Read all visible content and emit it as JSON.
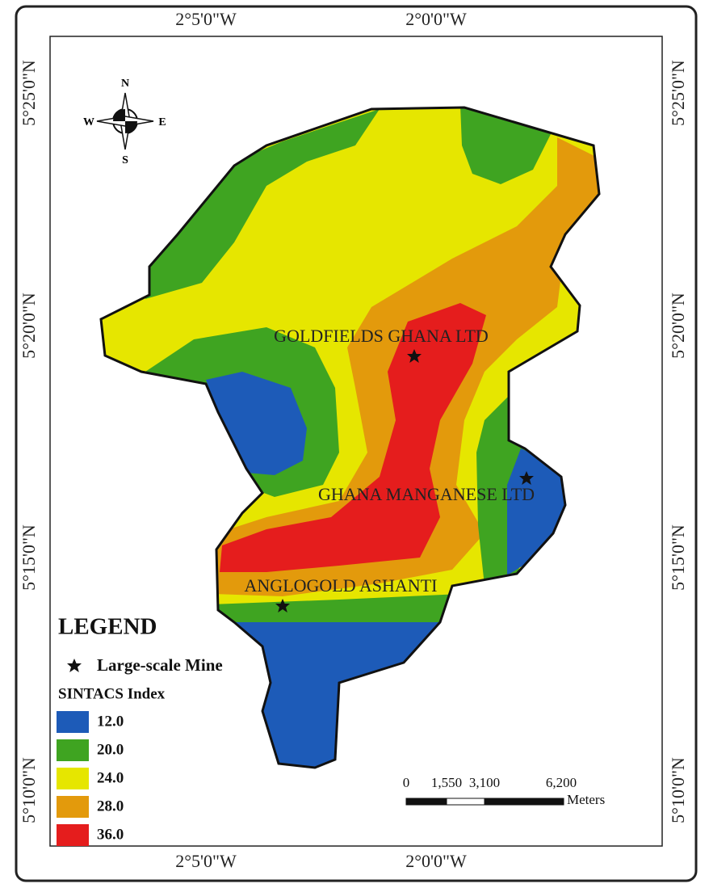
{
  "map": {
    "top_labels": [
      "2°5'0\"W",
      "2°0'0\"W"
    ],
    "bottom_labels": [
      "2°5'0\"W",
      "2°0'0\"W"
    ],
    "left_labels": [
      "5°25'0\"N",
      "5°20'0\"N",
      "5°15'0\"N",
      "5°10'0\"N"
    ],
    "right_labels": [
      "5°25'0\"N",
      "5°20'0\"N",
      "5°15'0\"N",
      "5°10'0\"N"
    ],
    "compass": {
      "n": "N",
      "s": "S",
      "e": "E",
      "w": "W"
    },
    "mines": [
      "GOLDFIELDS GHANA LTD",
      "GHANA MANGANESE LTD",
      "ANGLOGOLD ASHANTI"
    ],
    "scale_bar": {
      "labels": [
        "0",
        "1,550",
        "3,100",
        "6,200"
      ],
      "unit": "Meters"
    }
  },
  "legend": {
    "title": "LEGEND",
    "mine_label": "Large-scale Mine",
    "index_title": "SINTACS Index",
    "classes": [
      {
        "label": "12.0",
        "color": "#1d5bb8"
      },
      {
        "label": "20.0",
        "color": "#3fa421"
      },
      {
        "label": "24.0",
        "color": "#e6e600"
      },
      {
        "label": "28.0",
        "color": "#e39a0c"
      },
      {
        "label": "36.0",
        "color": "#e51d1d"
      }
    ]
  }
}
